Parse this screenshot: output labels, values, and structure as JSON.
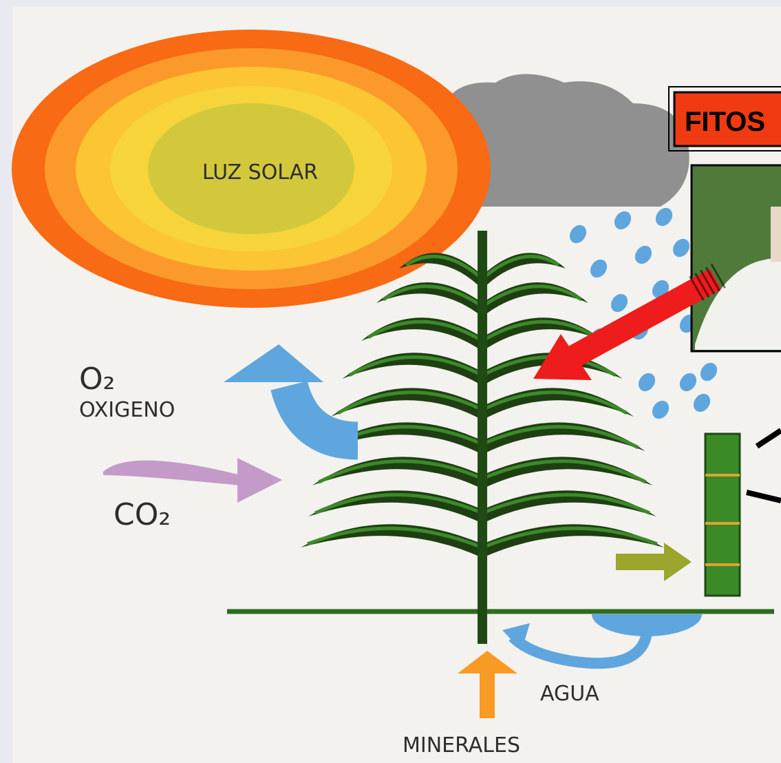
{
  "labels": {
    "sun": "LUZ SOLAR",
    "o2": "O₂",
    "oxygen": "OXIGENO",
    "co2": "CO₂",
    "water": "AGUA",
    "minerals": "MINERALES"
  },
  "callout": {
    "title": "FITOS"
  }
}
